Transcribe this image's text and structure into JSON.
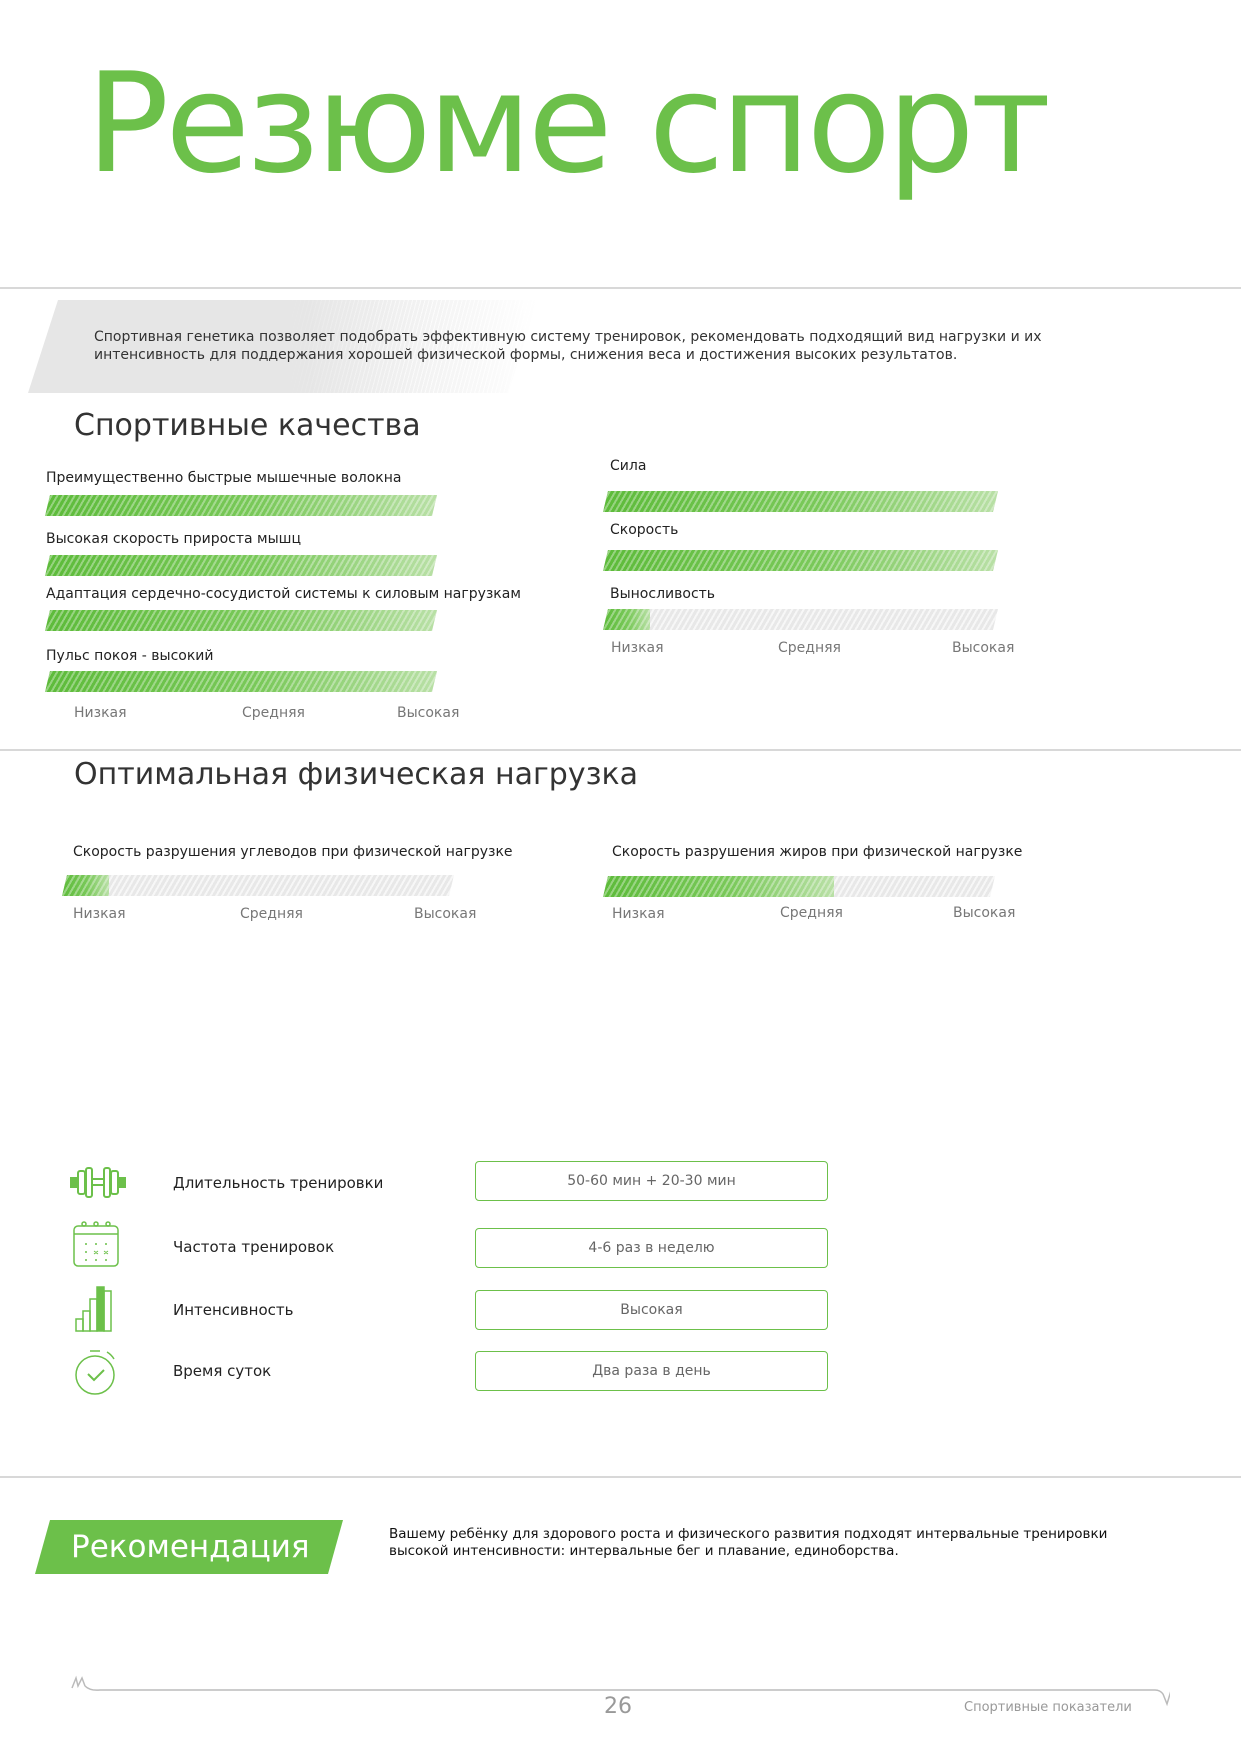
{
  "title": "Резюме спорт",
  "intro": "Спортивная генетика позволяет подобрать эффективную систему тренировок, рекомендовать подходящий вид нагрузки и их интенсивность для поддержания хорошей физической формы, снижения веса и достижения высоких результатов.",
  "colors": {
    "accent": "#6cc04a"
  },
  "scale": [
    "Низкая",
    "Средняя",
    "Высокая"
  ],
  "qualities": {
    "heading": "Спортивные качества",
    "left": [
      {
        "label": "Преимущественно быстрые мышечные волокна",
        "level": 1.0
      },
      {
        "label": "Высокая скорость прироста мышц",
        "level": 1.0
      },
      {
        "label": "Адаптация сердечно-сосудистой системы к силовым нагрузкам",
        "level": 1.0
      },
      {
        "label": "Пульс покоя - высокий",
        "level": 1.0
      }
    ],
    "right": [
      {
        "label": "Сила",
        "level": 1.0
      },
      {
        "label": "Скорость",
        "level": 1.0
      },
      {
        "label": "Выносливость",
        "level": 0.12
      }
    ]
  },
  "load": {
    "heading": "Оптимальная физическая нагрузка",
    "bars": [
      {
        "label": "Скорость разрушения углеводов при физической нагрузке",
        "level": 0.12
      },
      {
        "label": "Скорость разрушения жиров при физической нагрузке",
        "level": 0.59
      }
    ],
    "rows": [
      {
        "icon": "dumbbell-icon",
        "label": "Длительность тренировки",
        "value": "50-60 мин + 20-30 мин"
      },
      {
        "icon": "calendar-icon",
        "label": "Частота тренировок",
        "value": "4-6 раз в неделю"
      },
      {
        "icon": "bar-chart-icon",
        "label": "Интенсивность",
        "value": "Высокая"
      },
      {
        "icon": "stopwatch-icon",
        "label": "Время суток",
        "value": "Два раза в день"
      }
    ]
  },
  "recommendation": {
    "label": "Рекомендация",
    "text": "Вашему ребёнку для здорового роста и физического развития подходят интервальные тренировки высокой интенсивности: интервальные бег и плавание, единоборства."
  },
  "footer": {
    "page": "26",
    "section": "Спортивные показатели"
  }
}
